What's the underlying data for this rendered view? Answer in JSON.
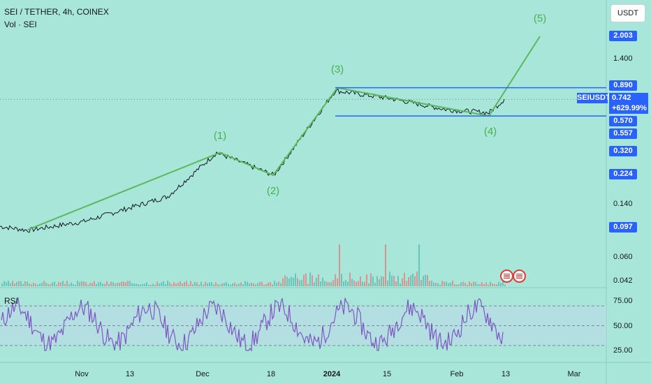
{
  "header": {
    "title": "SEI / TETHER, 4h, COINEX",
    "volume_label": "Vol · SEI"
  },
  "currency_button": "USDT",
  "price_scale": {
    "ticks": [
      "1.400",
      "0.140",
      "0.060",
      "0.042"
    ],
    "boxes": [
      "2.003",
      "0.890",
      "0.570",
      "0.557",
      "0.320",
      "0.224",
      "0.097"
    ],
    "symbol_tag": {
      "symbol": "SEIUSDT",
      "price": "0.742",
      "change": "+629.99%"
    }
  },
  "rsi_panel": {
    "label": "RSI",
    "ticks": [
      "75.00",
      "50.00",
      "25.00"
    ]
  },
  "x_axis": [
    "Nov",
    "13",
    "Dec",
    "18",
    "2024",
    "15",
    "Feb",
    "13",
    "Mar"
  ],
  "wave_labels": [
    "(1)",
    "(2)",
    "(3)",
    "(4)",
    "(5)"
  ],
  "colors": {
    "background": "#a8e6d9",
    "wave": "#5cb85c",
    "channel": "#2962ff",
    "rsi_line": "#7e57c2",
    "rsi_band": "#b7dde3",
    "price": "#131722"
  },
  "chart_data": {
    "type": "line",
    "title": "SEI / TETHER, 4h, COINEX",
    "y_scale": "log",
    "price_path": {
      "x": [
        "Nov",
        "13",
        "Dec",
        "18",
        "2024",
        "15",
        "Feb",
        "13"
      ],
      "y": [
        0.095,
        0.115,
        0.3,
        0.27,
        0.8,
        0.7,
        0.62,
        0.74
      ]
    },
    "elliott_waves": [
      {
        "label": "(1)",
        "value": 0.32
      },
      {
        "label": "(2)",
        "value": 0.224
      },
      {
        "label": "(3)",
        "value": 0.89
      },
      {
        "label": "(4)",
        "value": 0.57
      },
      {
        "label": "(5)",
        "value": 2.003
      }
    ],
    "channel": {
      "upper": 0.89,
      "lower": 0.57
    },
    "last_price": 0.742,
    "change": "+629.99%",
    "rsi": {
      "upper": 70,
      "middle": 50,
      "lower": 30,
      "range": [
        25,
        75
      ]
    }
  }
}
